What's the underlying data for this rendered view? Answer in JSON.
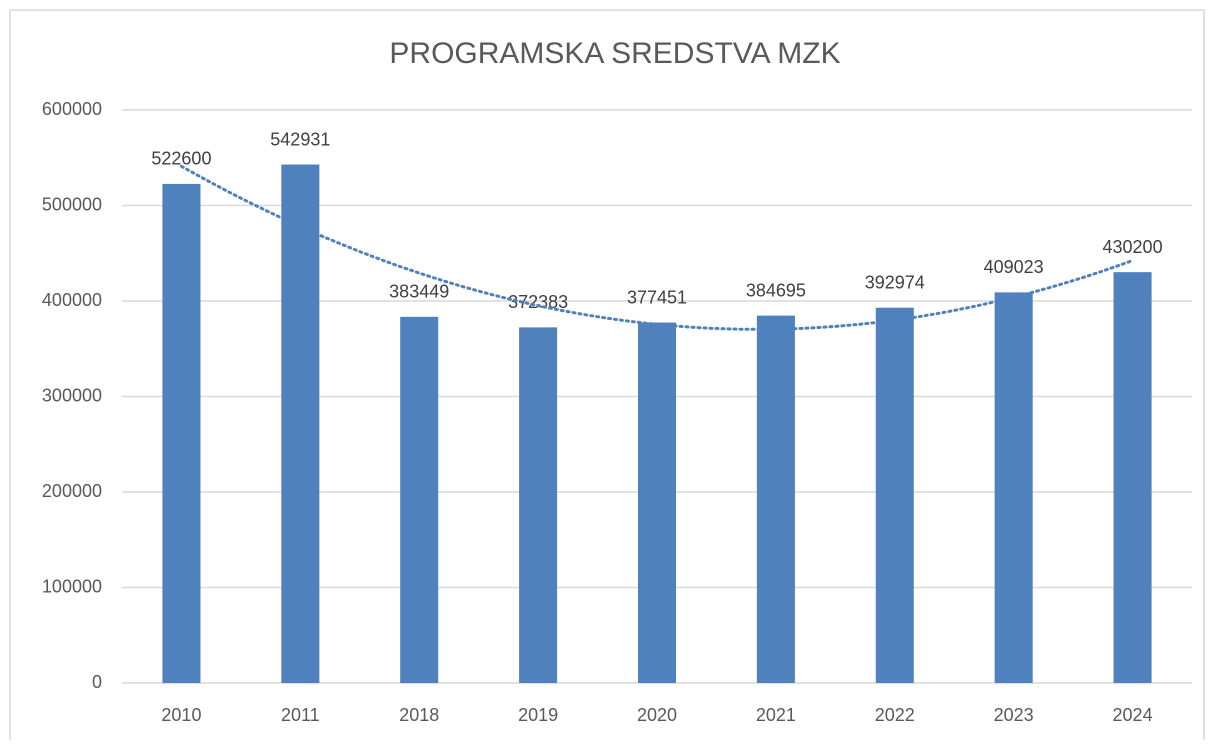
{
  "chart_data": {
    "type": "bar",
    "title": "PROGRAMSKA SREDSTVA MZK",
    "categories": [
      "2010",
      "2011",
      "2018",
      "2019",
      "2020",
      "2021",
      "2022",
      "2023",
      "2024"
    ],
    "values": [
      522600,
      542931,
      383449,
      372383,
      377451,
      384695,
      392974,
      409023,
      430200
    ],
    "color": "#4f81bd",
    "ylim": [
      0,
      600000
    ],
    "yticks": [
      0,
      100000,
      200000,
      300000,
      400000,
      500000,
      600000
    ],
    "grid": true,
    "data_labels": true,
    "trendline": {
      "type": "polynomial",
      "order": 2,
      "color": "#4f81bd",
      "style": "dotted"
    }
  }
}
